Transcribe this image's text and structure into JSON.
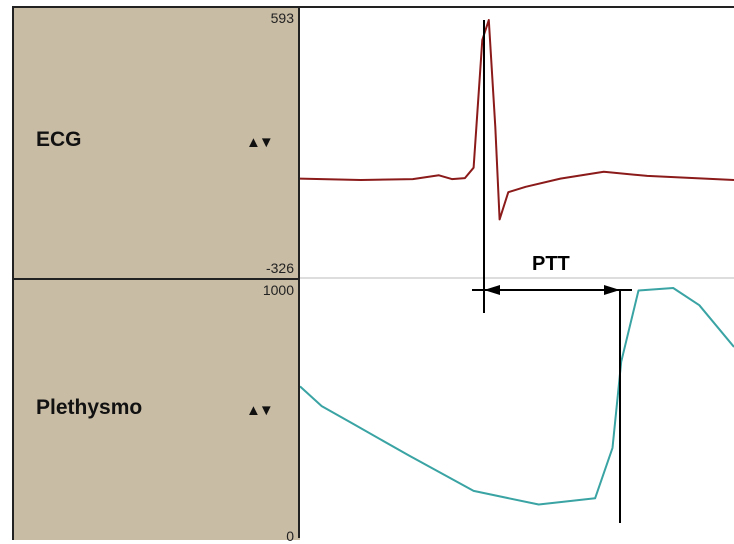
{
  "channels": [
    {
      "name": "ECG",
      "scale_max": "593",
      "scale_min": "-326",
      "color": "#8b1a1a"
    },
    {
      "name": "Plethysmo",
      "scale_max": "1000",
      "scale_min": "0",
      "color": "#3aa3a3"
    }
  ],
  "scale_control_icon": "up-down-triangles",
  "annotation": {
    "label": "PTT"
  },
  "chart_data": {
    "type": "line",
    "series": [
      {
        "name": "ECG",
        "ylim": [
          -326,
          593
        ],
        "values": [
          [
            0.0,
            10
          ],
          [
            0.14,
            5
          ],
          [
            0.26,
            8
          ],
          [
            0.32,
            22
          ],
          [
            0.35,
            8
          ],
          [
            0.38,
            12
          ],
          [
            0.4,
            50
          ],
          [
            0.42,
            520
          ],
          [
            0.435,
            593
          ],
          [
            0.45,
            200
          ],
          [
            0.46,
            -140
          ],
          [
            0.48,
            -40
          ],
          [
            0.52,
            -20
          ],
          [
            0.6,
            10
          ],
          [
            0.7,
            35
          ],
          [
            0.8,
            20
          ],
          [
            1.0,
            5
          ]
        ]
      },
      {
        "name": "Plethysmo",
        "ylim": [
          0,
          1000
        ],
        "values": [
          [
            0.0,
            600
          ],
          [
            0.05,
            520
          ],
          [
            0.12,
            450
          ],
          [
            0.25,
            320
          ],
          [
            0.4,
            175
          ],
          [
            0.55,
            120
          ],
          [
            0.68,
            145
          ],
          [
            0.72,
            350
          ],
          [
            0.74,
            700
          ],
          [
            0.78,
            990
          ],
          [
            0.86,
            1000
          ],
          [
            0.92,
            930
          ],
          [
            1.0,
            760
          ]
        ]
      }
    ],
    "grid": false,
    "legend": "none"
  }
}
